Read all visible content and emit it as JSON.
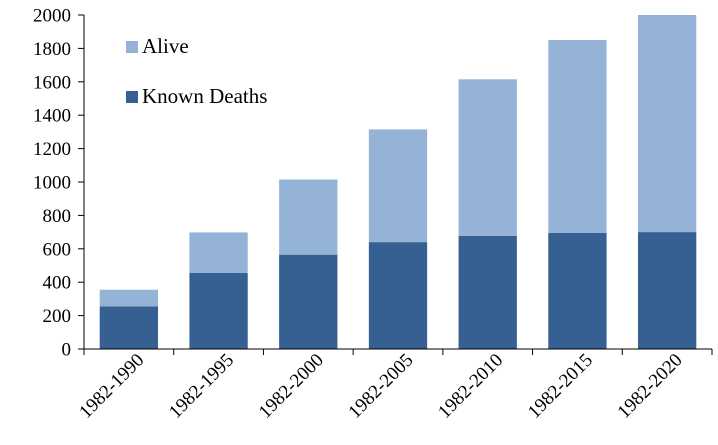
{
  "chart_data": {
    "type": "bar",
    "stacked": true,
    "categories": [
      "1982-1990",
      "1982-1995",
      "1982-2000",
      "1982-2005",
      "1982-2010",
      "1982-2015",
      "1982-2020"
    ],
    "series": [
      {
        "name": "Known Deaths",
        "values": [
          255,
          455,
          565,
          640,
          678,
          695,
          700
        ],
        "color": "#366092"
      },
      {
        "name": "Alive",
        "values": [
          100,
          243,
          450,
          675,
          937,
          1155,
          1300
        ],
        "color": "#95B3D7"
      }
    ],
    "ylim": [
      0,
      2000
    ],
    "yticks": [
      0,
      200,
      400,
      600,
      800,
      1000,
      1200,
      1400,
      1600,
      1800,
      2000
    ],
    "grid": false,
    "legend_position": "top-left",
    "legend_order": [
      "Alive",
      "Known Deaths"
    ]
  }
}
